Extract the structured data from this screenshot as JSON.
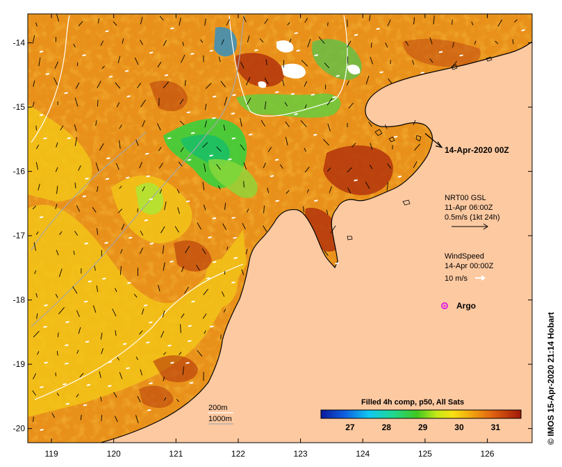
{
  "map": {
    "lon_range": [
      118.62,
      126.72
    ],
    "lat_range": [
      -20.22,
      -13.55
    ],
    "lon_ticks": [
      "119",
      "120",
      "121",
      "122",
      "123",
      "124",
      "125",
      "126"
    ],
    "lat_ticks": [
      "-14",
      "-15",
      "-16",
      "-17",
      "-18",
      "-19",
      "-20"
    ]
  },
  "annotations": {
    "date_title": "14-Apr-2020 00Z",
    "current_title": "NRT00 GSL",
    "current_time": "11-Apr 06:00Z",
    "current_scale": "0.5m/s (1kt 24h)",
    "wind_title": "WindSpeed",
    "wind_time": "14-Apr 00:00Z",
    "wind_scale": "10 m/s",
    "argo_label": "Argo",
    "depth_200": "200m",
    "depth_1000": "1000m"
  },
  "colorbar": {
    "title": "Filled 4h comp, p50, All Sats",
    "labels": [
      "27",
      "28",
      "29",
      "30",
      "31"
    ],
    "range": [
      26.2,
      31.7
    ]
  },
  "credit": "© IMOS 15-Apr-2020 21:14 Hobart",
  "colors": {
    "land": "#fdc9a1",
    "sst_warm": "#e8901a",
    "sst_hot": "#b3340c",
    "sst_cool": "#3ccf3c",
    "argo": "#e020e0",
    "contour_200": "#ffffff",
    "contour_1000": "#a8a8a8"
  }
}
